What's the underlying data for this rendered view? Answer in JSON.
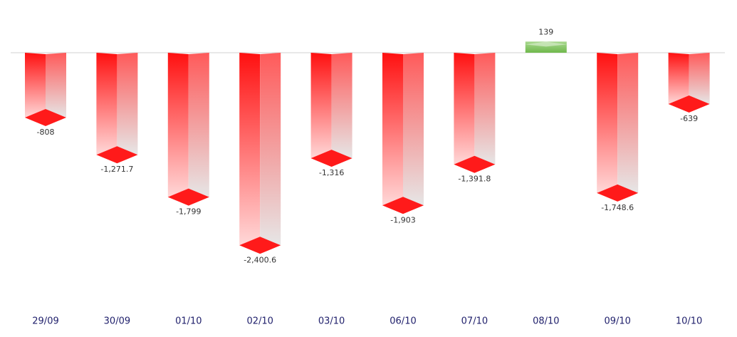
{
  "chart_data": {
    "type": "bar3d",
    "categories": [
      "29/09",
      "30/09",
      "01/10",
      "02/10",
      "03/10",
      "06/10",
      "07/10",
      "08/10",
      "09/10",
      "10/10"
    ],
    "values": [
      -808,
      -1271.7,
      -1799,
      -2400.6,
      -1316,
      -1903,
      -1391.8,
      139,
      -1748.6,
      -639
    ],
    "value_labels": [
      "-808",
      "-1,271.7",
      "-1,799",
      "-2,400.6",
      "-1,316",
      "-1,903",
      "-1,391.8",
      "139",
      "-1,748.6",
      "-639"
    ],
    "negative_color": "#ff1a1a",
    "positive_color": "#7cc25a"
  }
}
